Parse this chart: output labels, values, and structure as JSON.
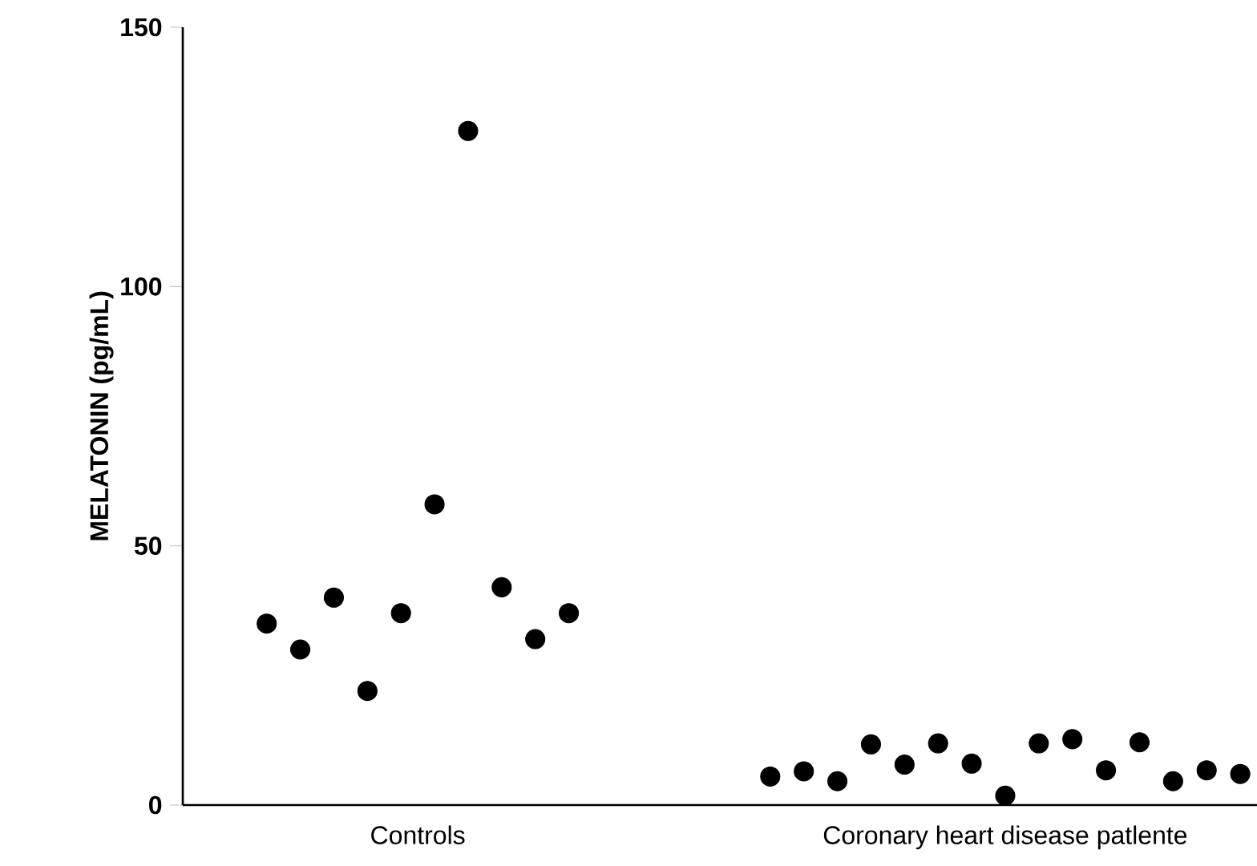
{
  "chart_data": {
    "type": "scatter",
    "ylabel": "MELATONIN (pg/mL)",
    "categories": [
      null,
      null,
      null,
      null,
      null,
      null,
      null,
      null,
      null,
      null,
      null,
      null,
      null,
      null,
      null,
      null,
      null,
      null,
      null,
      null,
      null,
      null,
      null,
      null,
      null,
      null,
      null,
      null,
      null,
      null,
      null,
      null
    ],
    "values": [
      null,
      null,
      35,
      30,
      40,
      22,
      37,
      58,
      130,
      42,
      32,
      37,
      null,
      null,
      null,
      null,
      null,
      5.5,
      6.5,
      4.6,
      11.7,
      7.8,
      11.9,
      8.0,
      1.8,
      11.9,
      12.7,
      6.7,
      12.1,
      4.6,
      6.7,
      6.0
    ],
    "annotations": [
      "Controls",
      "Coronary heart disease patlente"
    ],
    "color": "#000000",
    "ylim": [
      0,
      150
    ],
    "yticks": [
      0,
      50,
      100,
      150
    ],
    "tick_labels": "y"
  }
}
